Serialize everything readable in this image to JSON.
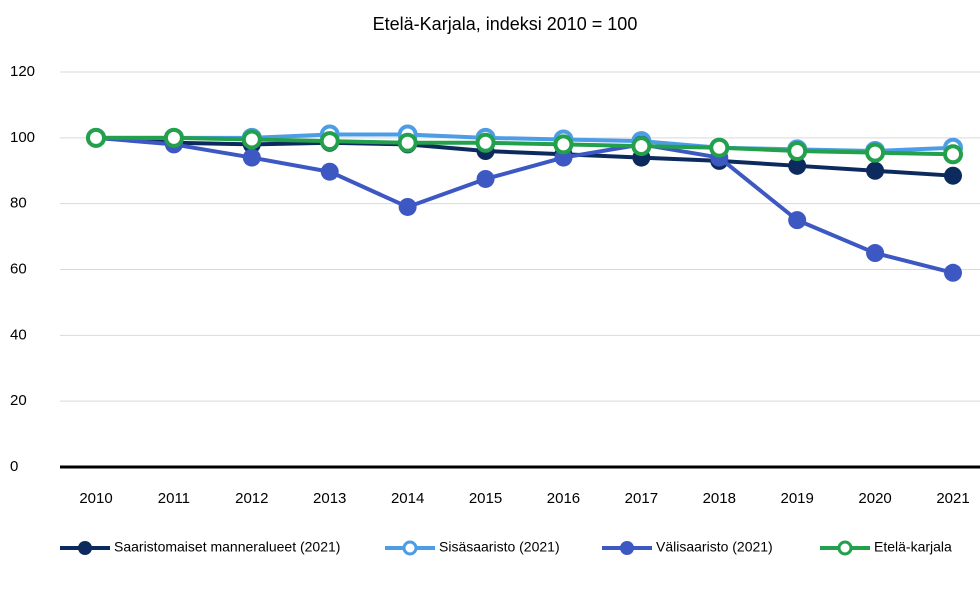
{
  "chart_data": {
    "type": "line",
    "title": "Etelä-Karjala, indeksi 2010 = 100",
    "categories": [
      "2010",
      "2011",
      "2012",
      "2013",
      "2014",
      "2015",
      "2016",
      "2017",
      "2018",
      "2019",
      "2020",
      "2021"
    ],
    "series": [
      {
        "name": "Saaristomaiset manneralueet (2021)",
        "color": "#0d2a5e",
        "marker_fill": "#0d2a5e",
        "values": [
          100,
          98.5,
          98,
          98.5,
          98,
          96,
          95,
          94,
          93,
          91.5,
          90,
          88.5
        ]
      },
      {
        "name": "Sisäsaaristo (2021)",
        "color": "#4d9de6",
        "marker_fill": "#ffffff",
        "values": [
          100,
          100,
          100,
          101,
          101,
          100,
          99.5,
          99,
          97,
          96.5,
          96,
          97
        ]
      },
      {
        "name": "Välisaaristo (2021)",
        "color": "#3d58c2",
        "marker_fill": "#3d58c2",
        "values": [
          100,
          98,
          94,
          89.7,
          79,
          87.5,
          94,
          98,
          94,
          75,
          65,
          59
        ]
      },
      {
        "name": "Etelä-karjala",
        "color": "#22a04b",
        "marker_fill": "#ffffff",
        "values": [
          100,
          100,
          99.5,
          99,
          98.5,
          98.5,
          98,
          97.5,
          97,
          96,
          95.5,
          95
        ]
      }
    ],
    "ylim": [
      0,
      120
    ],
    "yticks": [
      0,
      20,
      40,
      60,
      80,
      100,
      120
    ],
    "grid": true,
    "legend": "bottom"
  }
}
